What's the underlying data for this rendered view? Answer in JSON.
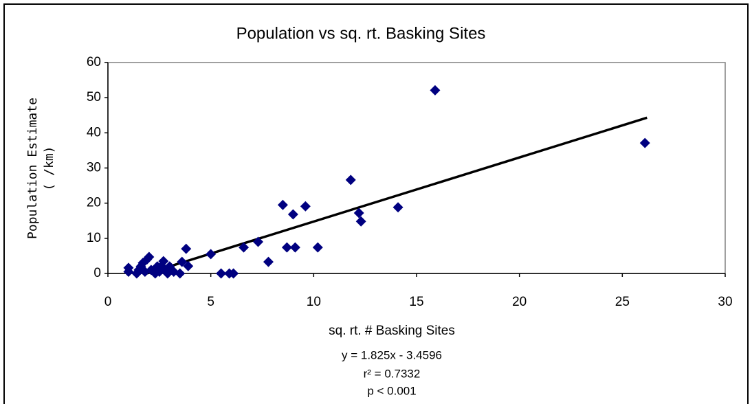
{
  "chart_data": {
    "type": "scatter",
    "title": "Population vs sq. rt. Basking Sites",
    "x_label": "sq. rt. # Basking Sites",
    "y_label": [
      "Population Estimate",
      "( /km)"
    ],
    "annotations": [
      "y = 1.825x - 3.4596",
      "r² = 0.7332",
      "p < 0.001"
    ],
    "series": [
      {
        "color": "#000080",
        "x": [
          1.0,
          1.0,
          1.4,
          1.5,
          1.6,
          1.7,
          1.8,
          1.9,
          2.0,
          2.1,
          2.3,
          2.4,
          2.5,
          2.6,
          2.7,
          2.8,
          2.9,
          3.0,
          3.2,
          3.5,
          3.6,
          3.8,
          3.9,
          5.0,
          5.5,
          5.9,
          6.1,
          6.6,
          7.3,
          7.8,
          8.5,
          8.7,
          9.0,
          9.1,
          9.6,
          10.2,
          11.8,
          12.2,
          12.3,
          14.1,
          15.9,
          26.1
        ],
        "values": [
          1.6,
          0.5,
          0,
          1,
          2,
          3,
          0.5,
          4,
          4.7,
          1,
          0,
          2,
          0.5,
          2,
          3.5,
          1,
          0,
          2,
          0.5,
          0,
          3.3,
          7,
          2.1,
          5.5,
          0,
          0,
          0,
          7.4,
          9,
          3.3,
          19.5,
          7.4,
          16.8,
          7.4,
          19.1,
          7.4,
          26.6,
          17.2,
          14.8,
          18.8,
          52.1,
          37.1
        ]
      }
    ],
    "trendline": {
      "color": "#000000",
      "x": [
        1.9,
        26.2
      ],
      "values": [
        0,
        44.3
      ]
    },
    "xlim": [
      0,
      30
    ],
    "xticks": [
      0,
      5,
      10,
      15,
      20,
      25,
      30
    ],
    "ylim": [
      0,
      60
    ],
    "yticks": [
      0,
      10,
      20,
      30,
      40,
      50,
      60
    ]
  }
}
